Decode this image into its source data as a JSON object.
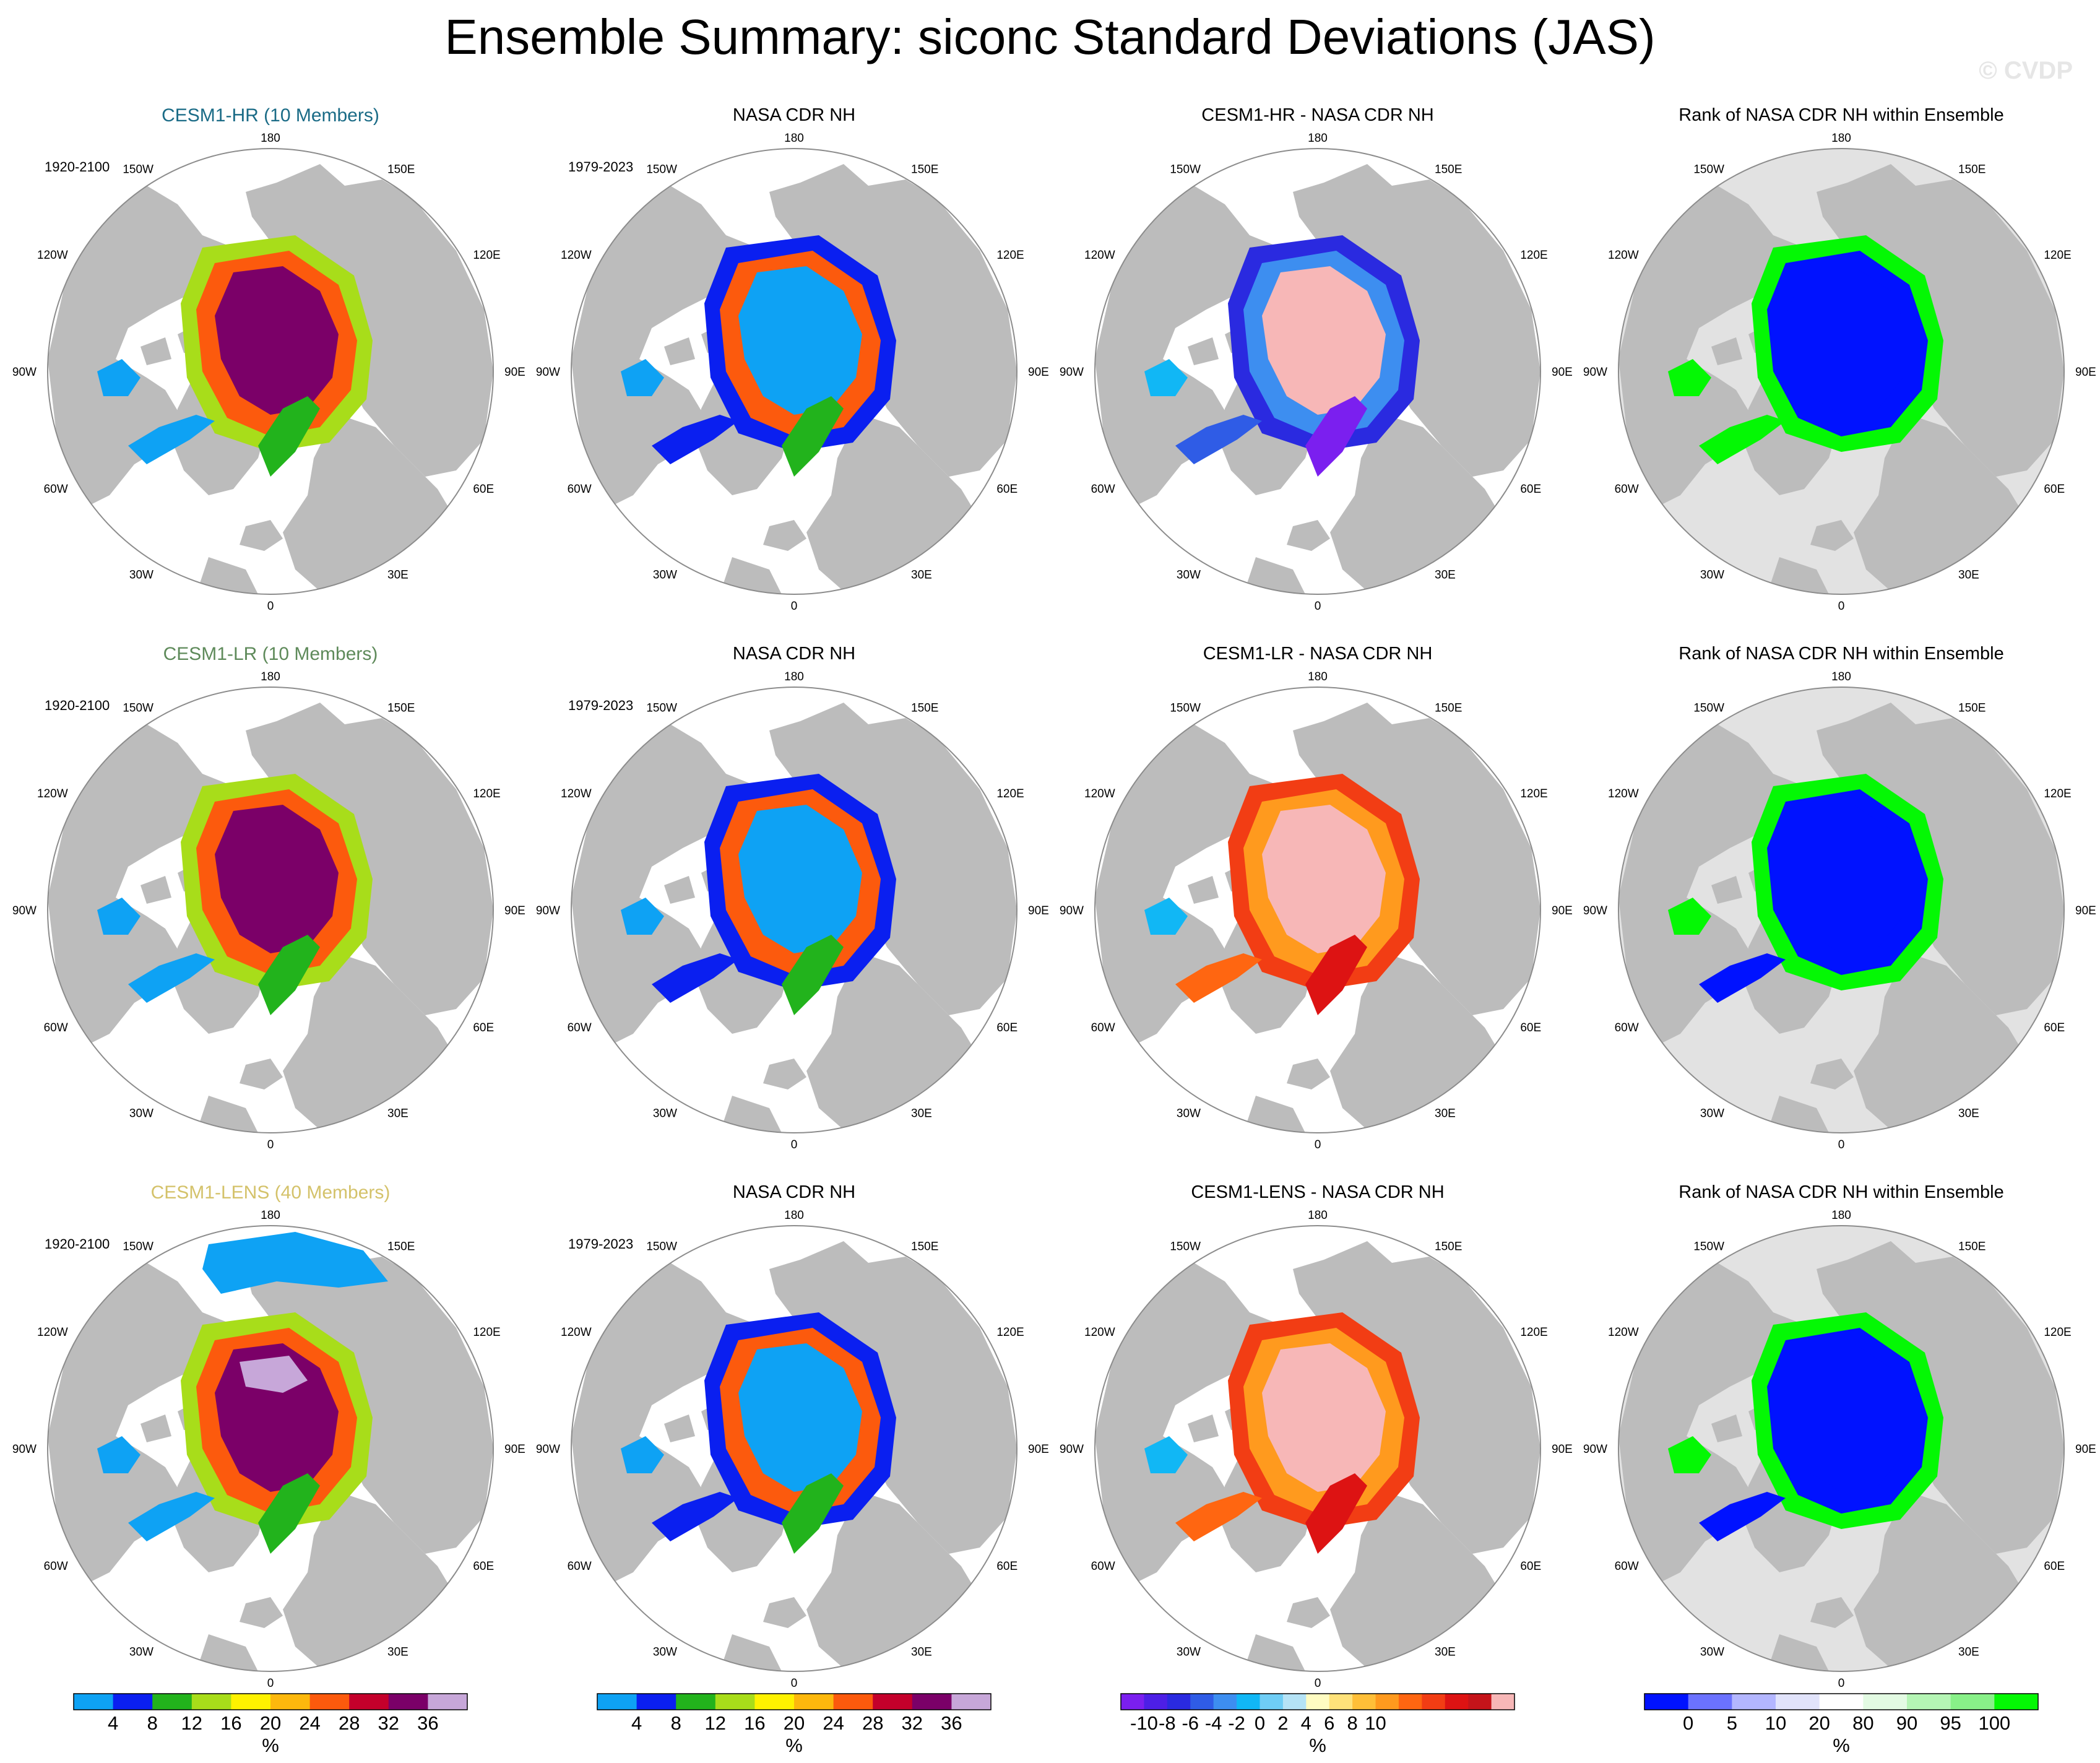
{
  "title": "Ensemble Summary: siconc Standard Deviations (JAS)",
  "watermark": "© CVDP",
  "colors": {
    "land": "#bcbcbc",
    "ocean": "#ffffff",
    "model_hr": "#1a6b86",
    "model_lr": "#5e8a5a",
    "model_lens": "#d4c26a",
    "rank_outside": "#e2e2e2"
  },
  "rows": [
    {
      "model": "CESM1-HR (10 Members)",
      "model_color": "#1a6b86",
      "model_range": "1920-2100",
      "obs_title": "NASA CDR NH",
      "obs_range": "1979-2023",
      "diff_title": "CESM1-HR - NASA CDR NH",
      "rank_title": "Rank of NASA CDR NH within Ensemble"
    },
    {
      "model": "CESM1-LR (10 Members)",
      "model_color": "#5e8a5a",
      "model_range": "1920-2100",
      "obs_title": "NASA CDR NH",
      "obs_range": "1979-2023",
      "diff_title": "CESM1-LR - NASA CDR NH",
      "rank_title": "Rank of NASA CDR NH within Ensemble"
    },
    {
      "model": "CESM1-LENS (40 Members)",
      "model_color": "#d4c26a",
      "model_range": "1920-2100",
      "obs_title": "NASA CDR NH",
      "obs_range": "1979-2023",
      "diff_title": "CESM1-LENS - NASA CDR NH",
      "rank_title": "Rank of NASA CDR NH within Ensemble"
    }
  ],
  "lon_labels": [
    "180",
    "150E",
    "120E",
    "90E",
    "60E",
    "30E",
    "0",
    "30W",
    "60W",
    "90W",
    "120W",
    "150W"
  ],
  "chart_data": [
    {
      "type": "heatmap",
      "name": "model_sd",
      "projection": "north polar stereographic",
      "units": "%",
      "colorbar": {
        "labels": [
          "4",
          "8",
          "12",
          "16",
          "20",
          "24",
          "28",
          "32",
          "36"
        ],
        "colors": [
          "#0ea2f4",
          "#0a1ff0",
          "#22b31c",
          "#a8dd1a",
          "#fff200",
          "#fdb80d",
          "#fc5a0d",
          "#c4002b",
          "#7b0068",
          "#c7a7d9"
        ]
      }
    },
    {
      "type": "heatmap",
      "name": "obs_sd",
      "projection": "north polar stereographic",
      "units": "%",
      "colorbar": {
        "labels": [
          "4",
          "8",
          "12",
          "16",
          "20",
          "24",
          "28",
          "32",
          "36"
        ],
        "colors": [
          "#0ea2f4",
          "#0a1ff0",
          "#22b31c",
          "#a8dd1a",
          "#fff200",
          "#fdb80d",
          "#fc5a0d",
          "#c4002b",
          "#7b0068",
          "#c7a7d9"
        ]
      }
    },
    {
      "type": "heatmap",
      "name": "difference",
      "projection": "north polar stereographic",
      "units": "%",
      "colorbar": {
        "labels": [
          "-10",
          "-8",
          "-6",
          "-4",
          "-2",
          "0",
          "2",
          "4",
          "6",
          "8",
          "10"
        ],
        "colors": [
          "#7b1fef",
          "#4d1fe6",
          "#2a2ae0",
          "#2f5ce6",
          "#3d8ef0",
          "#11b7f5",
          "#6fcdf5",
          "#b5e3f6",
          "#fffcc2",
          "#ffe27a",
          "#ffbf38",
          "#ff9a1e",
          "#ff6611",
          "#f23d14",
          "#dd1313",
          "#c5141a",
          "#f7b7b7"
        ]
      }
    },
    {
      "type": "heatmap",
      "name": "rank",
      "projection": "north polar stereographic",
      "units": "%",
      "colorbar": {
        "labels": [
          "0",
          "5",
          "10",
          "20",
          "80",
          "90",
          "95",
          "100"
        ],
        "colors": [
          "#0012ff",
          "#6b72ff",
          "#b3b6ff",
          "#e1e3fb",
          "#ffffff",
          "#e3fbe3",
          "#b5f5b5",
          "#88f088",
          "#04f804"
        ]
      }
    }
  ]
}
